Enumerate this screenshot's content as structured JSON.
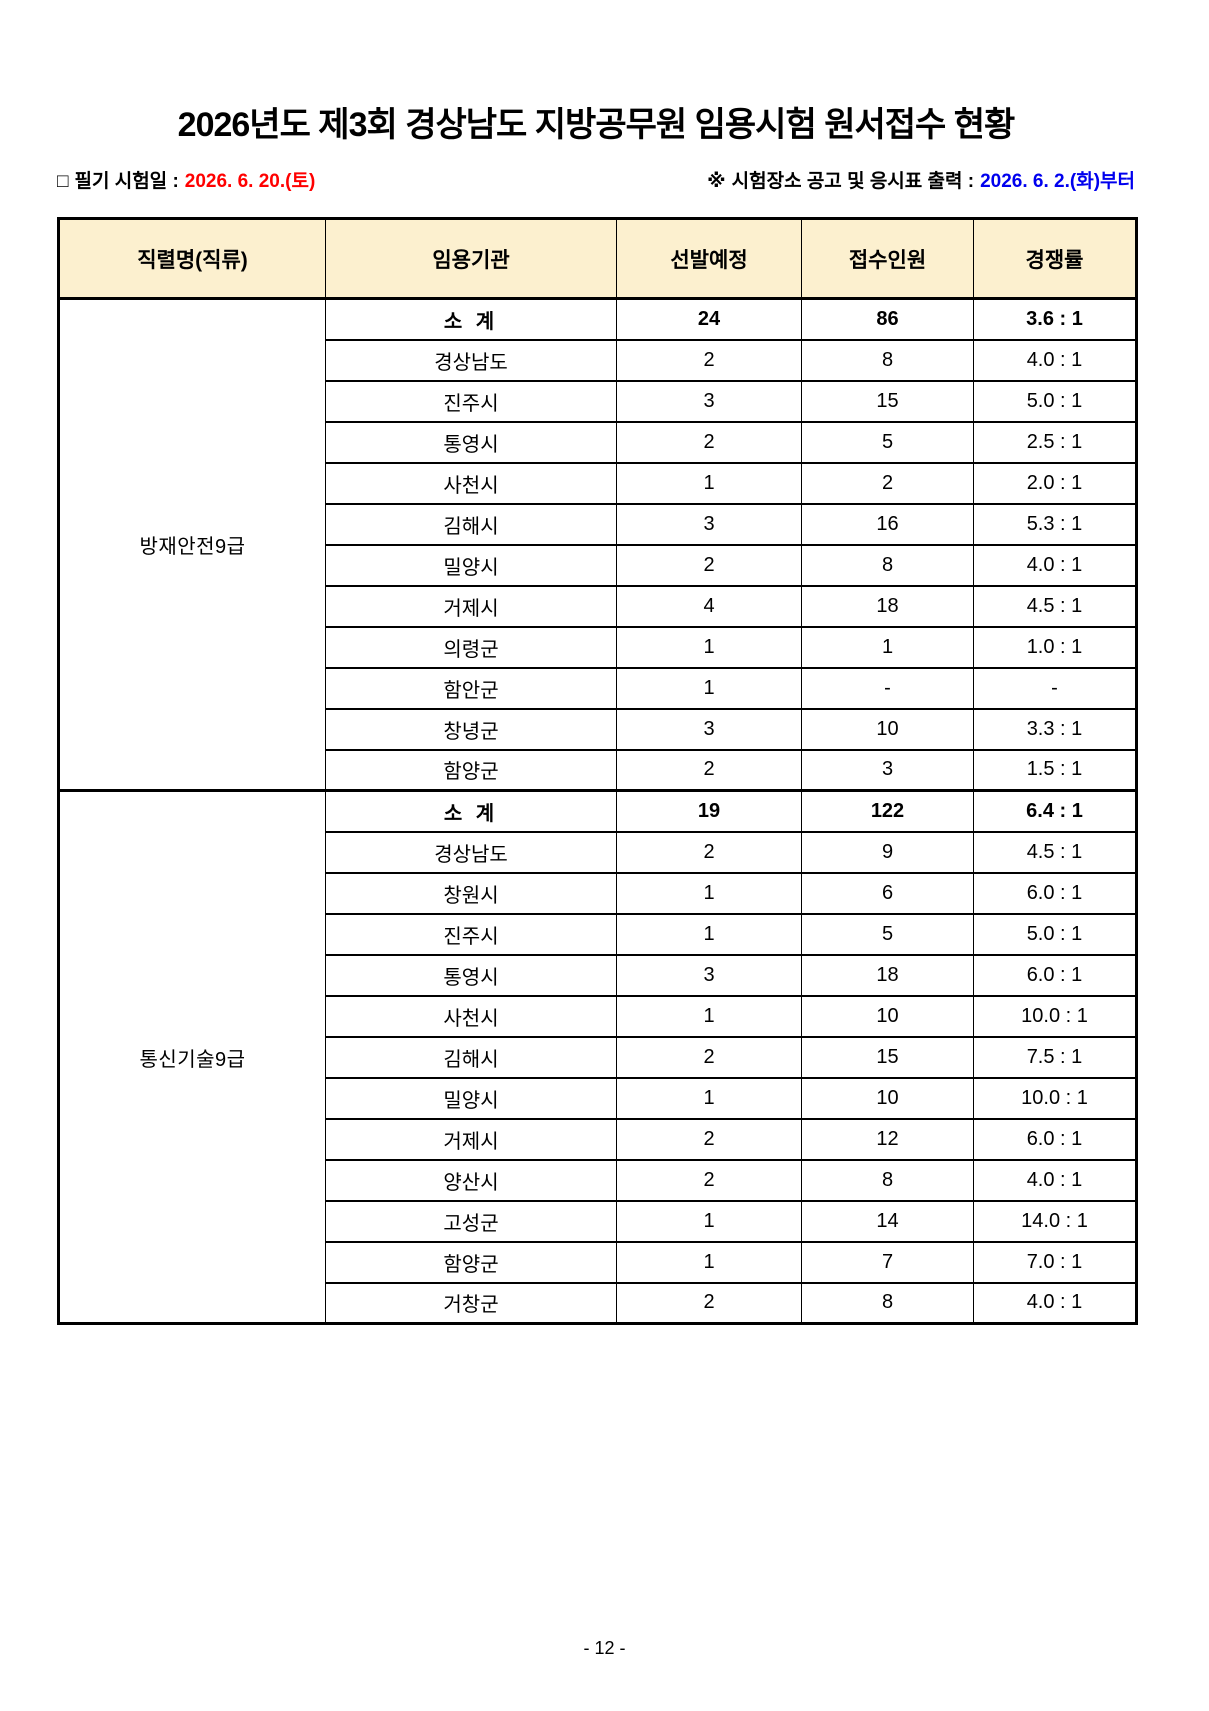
{
  "page": {
    "title": "2026년도 제3회 경상남도 지방공무원 임용시험 원서접수 현황",
    "exam_date_icon": "□",
    "exam_date_label": "필기 시험일 :",
    "exam_date_value": "2026. 6. 20.(토)",
    "notice_icon": "※",
    "notice_label": "시험장소 공고 및 응시표 출력 :",
    "notice_value": "2026. 6. 2.(화)부터",
    "page_number": "- 12 -"
  },
  "colors": {
    "header_bg": "#fcf0cf",
    "subtotal_bg": "#dbe0f1",
    "exam_date_color": "#ff0000",
    "notice_color": "#0000ee"
  },
  "table": {
    "headers": [
      "직렬명(직류)",
      "임용기관",
      "선발예정",
      "접수인원",
      "경쟁률"
    ],
    "sections": [
      {
        "name": "방재안전9급",
        "subtotal": {
          "agency": "소 계",
          "planned": "24",
          "applicants": "86",
          "ratio": "3.6 : 1"
        },
        "rows": [
          [
            "경상남도",
            "2",
            "8",
            "4.0 : 1"
          ],
          [
            "진주시",
            "3",
            "15",
            "5.0 : 1"
          ],
          [
            "통영시",
            "2",
            "5",
            "2.5 : 1"
          ],
          [
            "사천시",
            "1",
            "2",
            "2.0 : 1"
          ],
          [
            "김해시",
            "3",
            "16",
            "5.3 : 1"
          ],
          [
            "밀양시",
            "2",
            "8",
            "4.0 : 1"
          ],
          [
            "거제시",
            "4",
            "18",
            "4.5 : 1"
          ],
          [
            "의령군",
            "1",
            "1",
            "1.0 : 1"
          ],
          [
            "함안군",
            "1",
            "-",
            "-"
          ],
          [
            "창녕군",
            "3",
            "10",
            "3.3 : 1"
          ],
          [
            "함양군",
            "2",
            "3",
            "1.5 : 1"
          ]
        ]
      },
      {
        "name": "통신기술9급",
        "subtotal": {
          "agency": "소 계",
          "planned": "19",
          "applicants": "122",
          "ratio": "6.4 : 1"
        },
        "rows": [
          [
            "경상남도",
            "2",
            "9",
            "4.5 : 1"
          ],
          [
            "창원시",
            "1",
            "6",
            "6.0 : 1"
          ],
          [
            "진주시",
            "1",
            "5",
            "5.0 : 1"
          ],
          [
            "통영시",
            "3",
            "18",
            "6.0 : 1"
          ],
          [
            "사천시",
            "1",
            "10",
            "10.0 : 1"
          ],
          [
            "김해시",
            "2",
            "15",
            "7.5 : 1"
          ],
          [
            "밀양시",
            "1",
            "10",
            "10.0 : 1"
          ],
          [
            "거제시",
            "2",
            "12",
            "6.0 : 1"
          ],
          [
            "양산시",
            "2",
            "8",
            "4.0 : 1"
          ],
          [
            "고성군",
            "1",
            "14",
            "14.0 : 1"
          ],
          [
            "함양군",
            "1",
            "7",
            "7.0 : 1"
          ],
          [
            "거창군",
            "2",
            "8",
            "4.0 : 1"
          ]
        ]
      }
    ]
  }
}
